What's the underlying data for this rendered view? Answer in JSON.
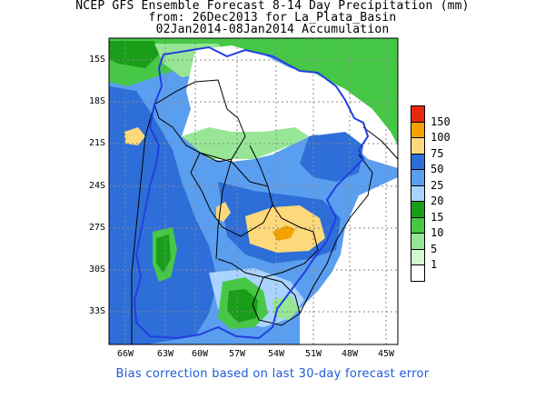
{
  "header": {
    "line1": "NCEP GFS Ensemble Forecast 8-14 Day Precipitation (mm)",
    "line2": "from: 26Dec2013   for La_Plata_Basin",
    "line3": "02Jan2014-08Jan2014 Accumulation"
  },
  "axes": {
    "lat_labels": [
      "15S",
      "18S",
      "21S",
      "24S",
      "27S",
      "30S",
      "33S"
    ],
    "lon_labels": [
      "66W",
      "63W",
      "60W",
      "57W",
      "54W",
      "51W",
      "48W",
      "45W"
    ]
  },
  "legend": {
    "entries": [
      {
        "label": "150",
        "color": "#e8280c"
      },
      {
        "label": "100",
        "color": "#f5a200"
      },
      {
        "label": "75",
        "color": "#fcd97a"
      },
      {
        "label": "50",
        "color": "#2e6ed8"
      },
      {
        "label": "25",
        "color": "#5a9ef0"
      },
      {
        "label": "20",
        "color": "#aad4ff"
      },
      {
        "label": "15",
        "color": "#1a9e1a"
      },
      {
        "label": "10",
        "color": "#46c846"
      },
      {
        "label": "5",
        "color": "#96e696"
      },
      {
        "label": "1",
        "color": "#d2f8d2"
      },
      {
        "label": "",
        "color": "#ffffff"
      }
    ]
  },
  "footer": {
    "bias_note": "Bias correction based on last 30-day forecast error"
  },
  "map_colors": {
    "basin_outline": "#2040e0",
    "borders": "#000000",
    "grid": "#888888"
  }
}
